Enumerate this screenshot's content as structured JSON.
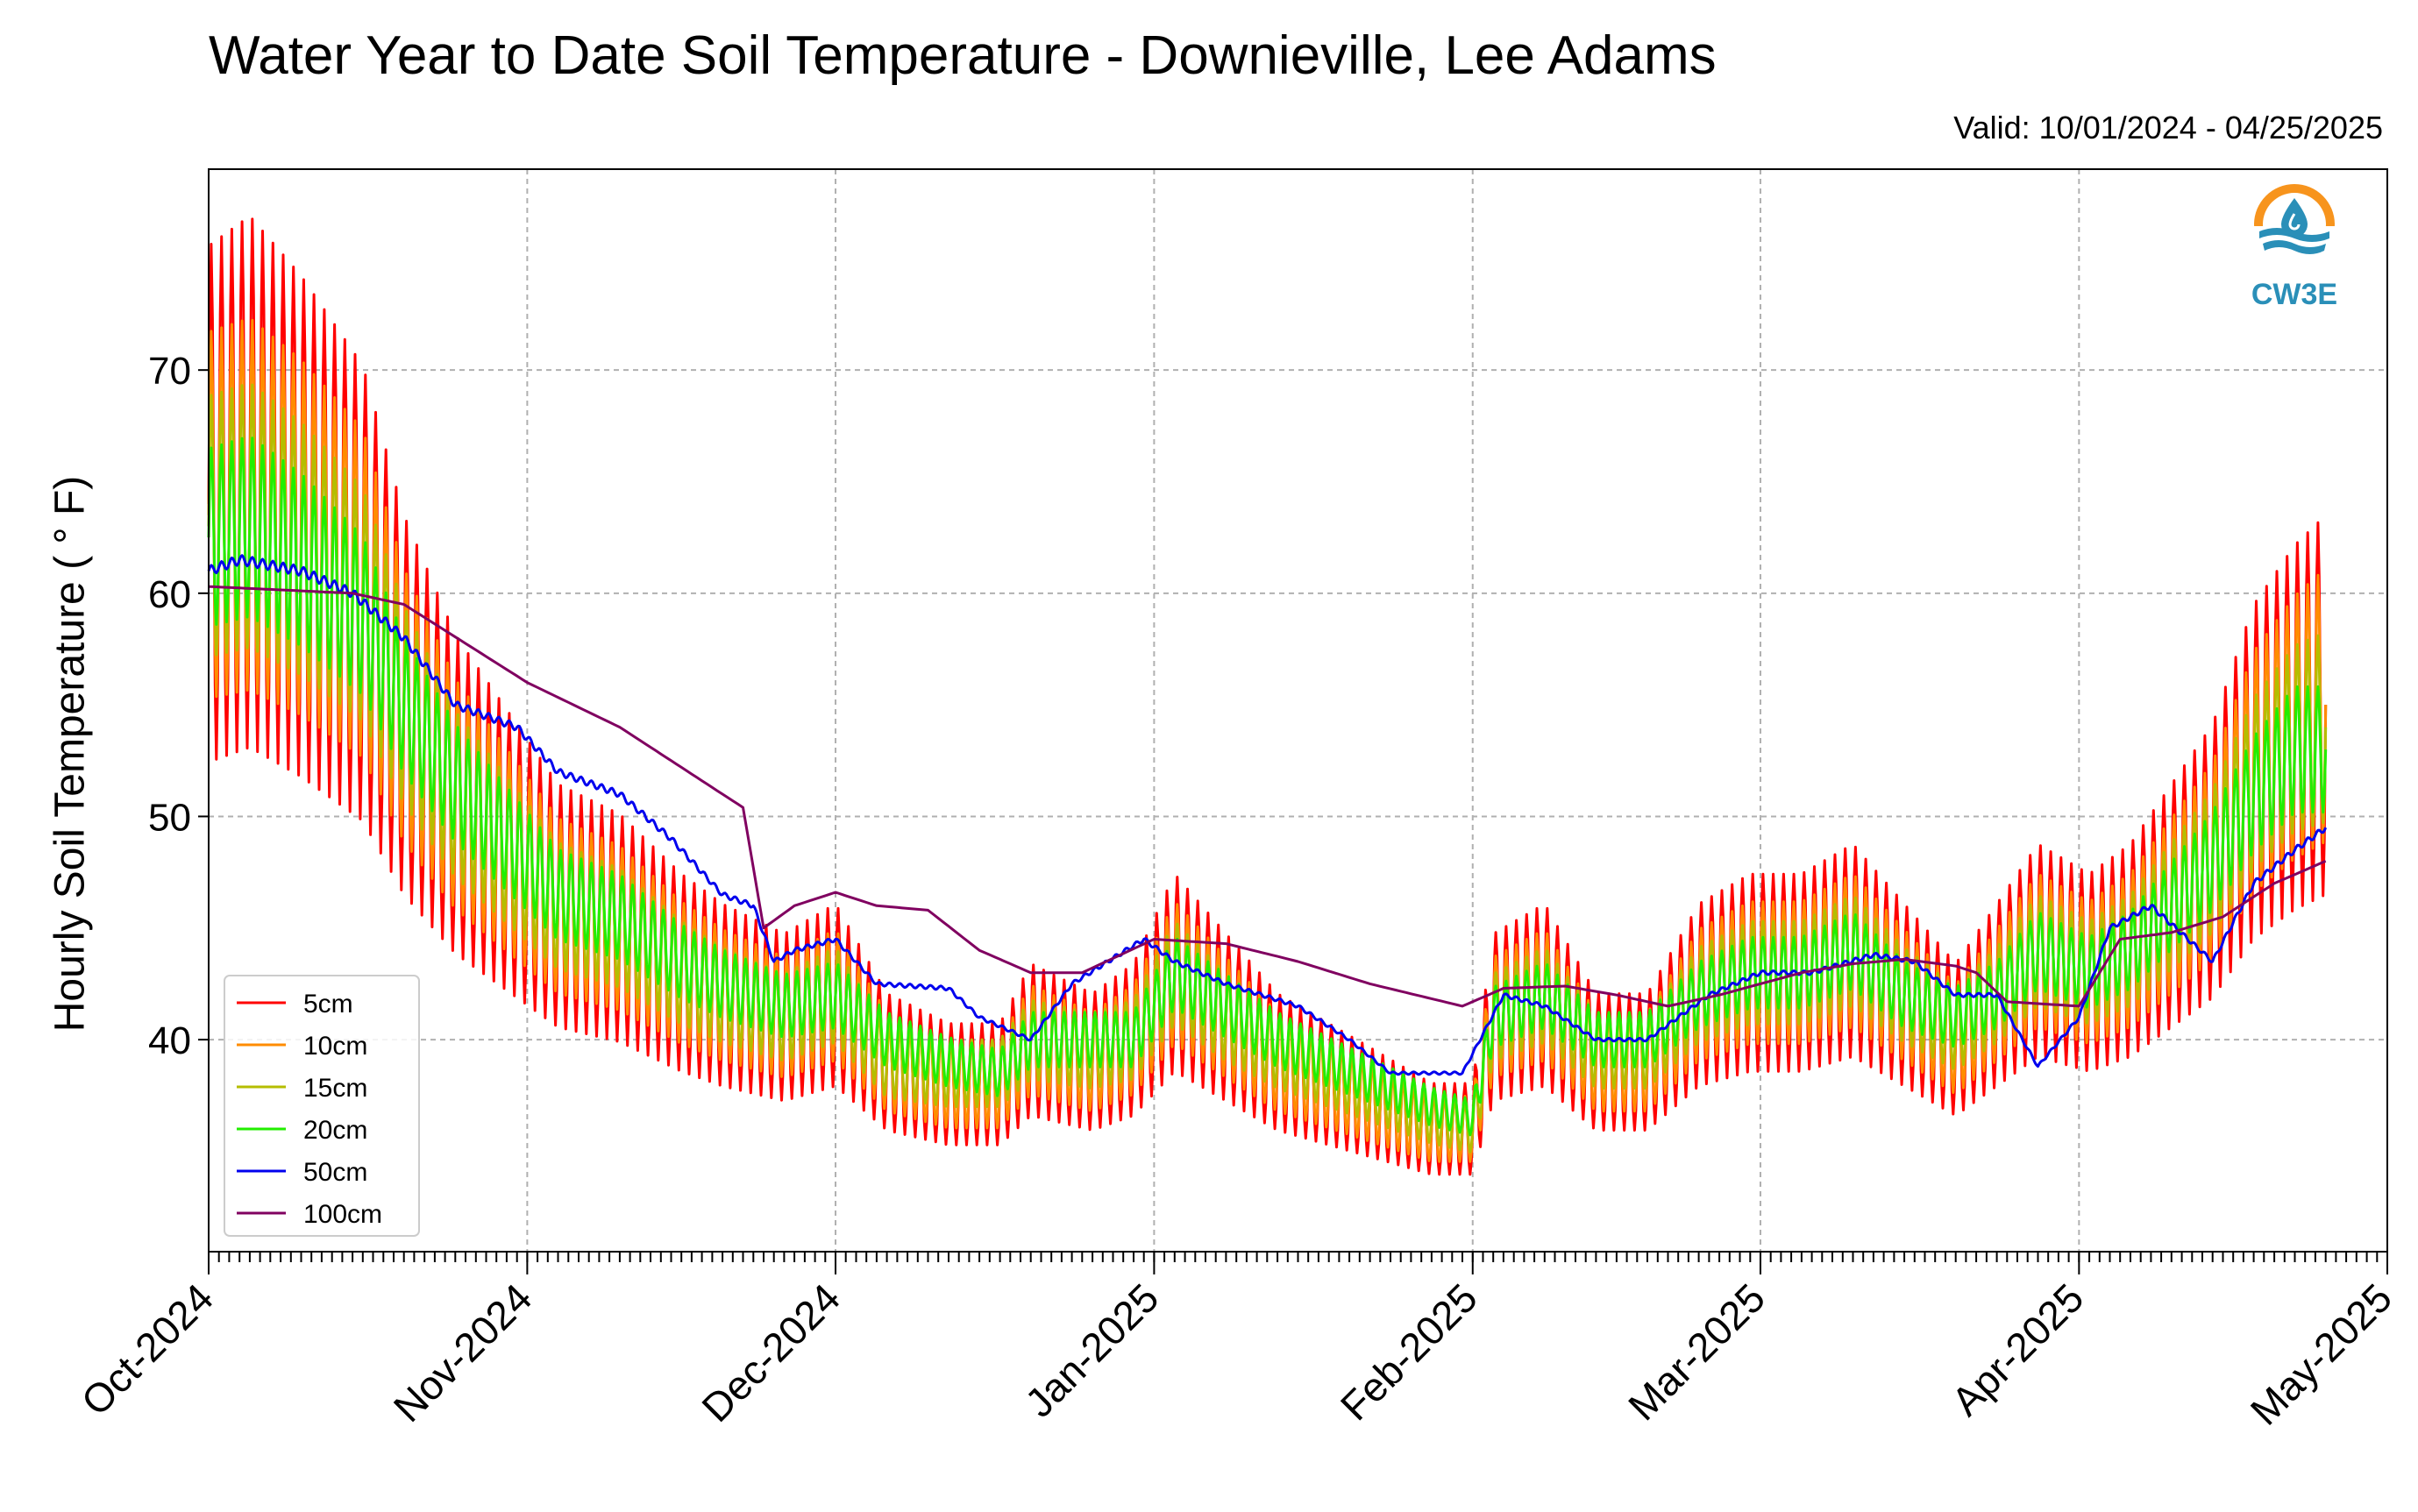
{
  "chart_data": {
    "type": "line",
    "title": "Water Year to Date Soil Temperature - Downieville, Lee Adams",
    "subtitle": "Valid: 10/01/2024 - 04/25/2025",
    "ylabel": "Hourly Soil Temperature ( ° F)",
    "xlabel": "",
    "ylim": [
      30.5,
      79
    ],
    "xlim": [
      "2024-10-01",
      "2025-05-01"
    ],
    "yticks": [
      40,
      50,
      60,
      70
    ],
    "xticks": [
      {
        "date": "2024-10-01",
        "label": "Oct-2024"
      },
      {
        "date": "2024-11-01",
        "label": "Nov-2024"
      },
      {
        "date": "2024-12-01",
        "label": "Dec-2024"
      },
      {
        "date": "2025-01-01",
        "label": "Jan-2025"
      },
      {
        "date": "2025-02-01",
        "label": "Feb-2025"
      },
      {
        "date": "2025-03-01",
        "label": "Mar-2025"
      },
      {
        "date": "2025-04-01",
        "label": "Apr-2025"
      },
      {
        "date": "2025-05-01",
        "label": "May-2025"
      }
    ],
    "grid": true,
    "legend_position": "lower-left",
    "series": [
      {
        "name": "5cm",
        "color": "#ff0000",
        "x": [
          "2024-10-01",
          "2024-10-05",
          "2024-10-10",
          "2024-10-16",
          "2024-10-20",
          "2024-10-25",
          "2024-10-29",
          "2024-11-04",
          "2024-11-10",
          "2024-11-16",
          "2024-11-20",
          "2024-11-26",
          "2024-12-01",
          "2024-12-06",
          "2024-12-12",
          "2024-12-17",
          "2024-12-20",
          "2024-12-26",
          "2024-12-30",
          "2025-01-03",
          "2025-01-08",
          "2025-01-13",
          "2025-01-18",
          "2025-01-23",
          "2025-01-28",
          "2025-02-01",
          "2025-02-03",
          "2025-02-08",
          "2025-02-13",
          "2025-02-18",
          "2025-02-23",
          "2025-02-28",
          "2025-03-05",
          "2025-03-10",
          "2025-03-15",
          "2025-03-20",
          "2025-03-24",
          "2025-03-28",
          "2025-04-02",
          "2025-04-06",
          "2025-04-10",
          "2025-04-14",
          "2025-04-18",
          "2025-04-22",
          "2025-04-25"
        ],
        "y": [
          64,
          65,
          63,
          60,
          55,
          51,
          49,
          46,
          45,
          43,
          42,
          41,
          42,
          39,
          38,
          38,
          40,
          39,
          40,
          43,
          41,
          39,
          38,
          37,
          36,
          36,
          41,
          42,
          39,
          39,
          42,
          43,
          43,
          44,
          42,
          40,
          42,
          44,
          43,
          44,
          46,
          48,
          52,
          54,
          55
        ]
      },
      {
        "name": "10cm",
        "color": "#ff8c00",
        "x": [
          "2024-10-01",
          "2024-10-05",
          "2024-10-10",
          "2024-10-16",
          "2024-10-20",
          "2024-10-25",
          "2024-10-29",
          "2024-11-04",
          "2024-11-10",
          "2024-11-16",
          "2024-11-20",
          "2024-11-26",
          "2024-12-01",
          "2024-12-06",
          "2024-12-12",
          "2024-12-17",
          "2024-12-20",
          "2024-12-26",
          "2024-12-30",
          "2025-01-03",
          "2025-01-08",
          "2025-01-13",
          "2025-01-18",
          "2025-01-23",
          "2025-01-28",
          "2025-02-01",
          "2025-02-03",
          "2025-02-08",
          "2025-02-13",
          "2025-02-18",
          "2025-02-23",
          "2025-02-28",
          "2025-03-05",
          "2025-03-10",
          "2025-03-15",
          "2025-03-20",
          "2025-03-24",
          "2025-03-28",
          "2025-04-02",
          "2025-04-06",
          "2025-04-10",
          "2025-04-14",
          "2025-04-18",
          "2025-04-22",
          "2025-04-25"
        ],
        "y": [
          63.5,
          64,
          62.5,
          60,
          55,
          51,
          49,
          46,
          45,
          43,
          42,
          41,
          42,
          39,
          38,
          38,
          40,
          39,
          40,
          43,
          41,
          39,
          38,
          37,
          36,
          36,
          41,
          42,
          39,
          39,
          42,
          43,
          43,
          44,
          42,
          40,
          42,
          44,
          43,
          44,
          46,
          48,
          52,
          54,
          55
        ]
      },
      {
        "name": "15cm",
        "color": "#b5bd00",
        "x": [
          "2024-10-01",
          "2024-10-05",
          "2024-10-10",
          "2024-10-16",
          "2024-10-20",
          "2024-10-25",
          "2024-10-29",
          "2024-11-04",
          "2024-11-10",
          "2024-11-16",
          "2024-11-20",
          "2024-11-26",
          "2024-12-01",
          "2024-12-06",
          "2024-12-12",
          "2024-12-17",
          "2024-12-20",
          "2024-12-26",
          "2024-12-30",
          "2025-01-03",
          "2025-01-08",
          "2025-01-13",
          "2025-01-18",
          "2025-01-23",
          "2025-01-28",
          "2025-02-01",
          "2025-02-03",
          "2025-02-08",
          "2025-02-13",
          "2025-02-18",
          "2025-02-23",
          "2025-02-28",
          "2025-03-05",
          "2025-03-10",
          "2025-03-15",
          "2025-03-20",
          "2025-03-24",
          "2025-03-28",
          "2025-04-02",
          "2025-04-06",
          "2025-04-10",
          "2025-04-14",
          "2025-04-18",
          "2025-04-22",
          "2025-04-25"
        ],
        "y": [
          63,
          63.5,
          62,
          59.5,
          55,
          51,
          49,
          46,
          45,
          43,
          42,
          41,
          42,
          39,
          38.5,
          38.5,
          40,
          39.5,
          40,
          43,
          41,
          39.5,
          38.5,
          37.5,
          36.5,
          36,
          41,
          42,
          39.5,
          39.5,
          42,
          43,
          43,
          44,
          42,
          40.5,
          42,
          44,
          43,
          44,
          46,
          48,
          51.5,
          53.5,
          54
        ]
      },
      {
        "name": "20cm",
        "color": "#22ee00",
        "x": [
          "2024-10-01",
          "2024-10-05",
          "2024-10-10",
          "2024-10-16",
          "2024-10-20",
          "2024-10-25",
          "2024-10-29",
          "2024-11-04",
          "2024-11-10",
          "2024-11-16",
          "2024-11-20",
          "2024-11-26",
          "2024-12-01",
          "2024-12-06",
          "2024-12-12",
          "2024-12-17",
          "2024-12-20",
          "2024-12-26",
          "2024-12-30",
          "2025-01-03",
          "2025-01-08",
          "2025-01-13",
          "2025-01-18",
          "2025-01-23",
          "2025-01-28",
          "2025-02-01",
          "2025-02-03",
          "2025-02-08",
          "2025-02-13",
          "2025-02-18",
          "2025-02-23",
          "2025-02-28",
          "2025-03-05",
          "2025-03-10",
          "2025-03-15",
          "2025-03-20",
          "2025-03-24",
          "2025-03-28",
          "2025-04-02",
          "2025-04-06",
          "2025-04-10",
          "2025-04-14",
          "2025-04-18",
          "2025-04-22",
          "2025-04-25"
        ],
        "y": [
          62.5,
          63,
          61.5,
          59,
          55,
          51.5,
          49.5,
          46.5,
          45.5,
          43.5,
          42.5,
          41.5,
          42,
          40,
          39,
          38.5,
          40,
          40,
          40,
          43,
          41.5,
          40,
          39,
          38,
          37,
          36.5,
          41,
          42,
          40,
          40,
          42,
          43,
          43,
          44,
          42,
          41,
          42,
          44,
          43,
          44,
          46,
          48,
          51,
          53,
          53
        ]
      },
      {
        "name": "50cm",
        "color": "#0000ee",
        "x": [
          "2024-10-01",
          "2024-10-04",
          "2024-10-10",
          "2024-10-15",
          "2024-10-20",
          "2024-10-25",
          "2024-10-31",
          "2024-11-04",
          "2024-11-10",
          "2024-11-15",
          "2024-11-20",
          "2024-11-23",
          "2024-11-25",
          "2024-11-27",
          "2024-12-01",
          "2024-12-05",
          "2024-12-12",
          "2024-12-15",
          "2024-12-20",
          "2024-12-24",
          "2024-12-31",
          "2025-01-03",
          "2025-01-08",
          "2025-01-15",
          "2025-01-20",
          "2025-01-24",
          "2025-01-31",
          "2025-02-04",
          "2025-02-08",
          "2025-02-13",
          "2025-02-18",
          "2025-02-24",
          "2025-03-01",
          "2025-03-06",
          "2025-03-12",
          "2025-03-16",
          "2025-03-20",
          "2025-03-24",
          "2025-03-28",
          "2025-04-01",
          "2025-04-04",
          "2025-04-08",
          "2025-04-14",
          "2025-04-18",
          "2025-04-22",
          "2025-04-25"
        ],
        "y": [
          61,
          61.5,
          61,
          60,
          58,
          55,
          54,
          52,
          51,
          49,
          46.5,
          46,
          43.5,
          44,
          44.5,
          42.5,
          42.3,
          41,
          40,
          42.5,
          44.5,
          43.5,
          42.5,
          41.5,
          40,
          38.5,
          38.5,
          42,
          41.5,
          40,
          40,
          42,
          43,
          43,
          43.8,
          43.5,
          42,
          42,
          38.8,
          41,
          45,
          46,
          43.5,
          47,
          48.5,
          49.5
        ]
      },
      {
        "name": "100cm",
        "color": "#800060",
        "x": [
          "2024-10-01",
          "2024-10-15",
          "2024-10-20",
          "2024-11-01",
          "2024-11-10",
          "2024-11-20",
          "2024-11-22",
          "2024-11-24",
          "2024-11-27",
          "2024-12-01",
          "2024-12-05",
          "2024-12-10",
          "2024-12-15",
          "2024-12-20",
          "2024-12-25",
          "2025-01-01",
          "2025-01-08",
          "2025-01-15",
          "2025-01-22",
          "2025-01-31",
          "2025-02-04",
          "2025-02-10",
          "2025-02-15",
          "2025-02-20",
          "2025-02-25",
          "2025-03-01",
          "2025-03-05",
          "2025-03-10",
          "2025-03-15",
          "2025-03-20",
          "2025-03-22",
          "2025-03-25",
          "2025-04-01",
          "2025-04-05",
          "2025-04-10",
          "2025-04-15",
          "2025-04-20",
          "2025-04-25"
        ],
        "y": [
          60.3,
          60,
          59.5,
          56,
          54,
          51,
          50.4,
          45,
          46,
          46.6,
          46,
          45.8,
          44,
          43,
          43,
          44.5,
          44.3,
          43.5,
          42.5,
          41.5,
          42.3,
          42.4,
          42,
          41.5,
          42,
          42.5,
          43,
          43.4,
          43.6,
          43.3,
          43,
          41.7,
          41.5,
          44.5,
          44.8,
          45.5,
          47,
          48
        ]
      }
    ]
  },
  "logo": {
    "text": "CW3E"
  }
}
